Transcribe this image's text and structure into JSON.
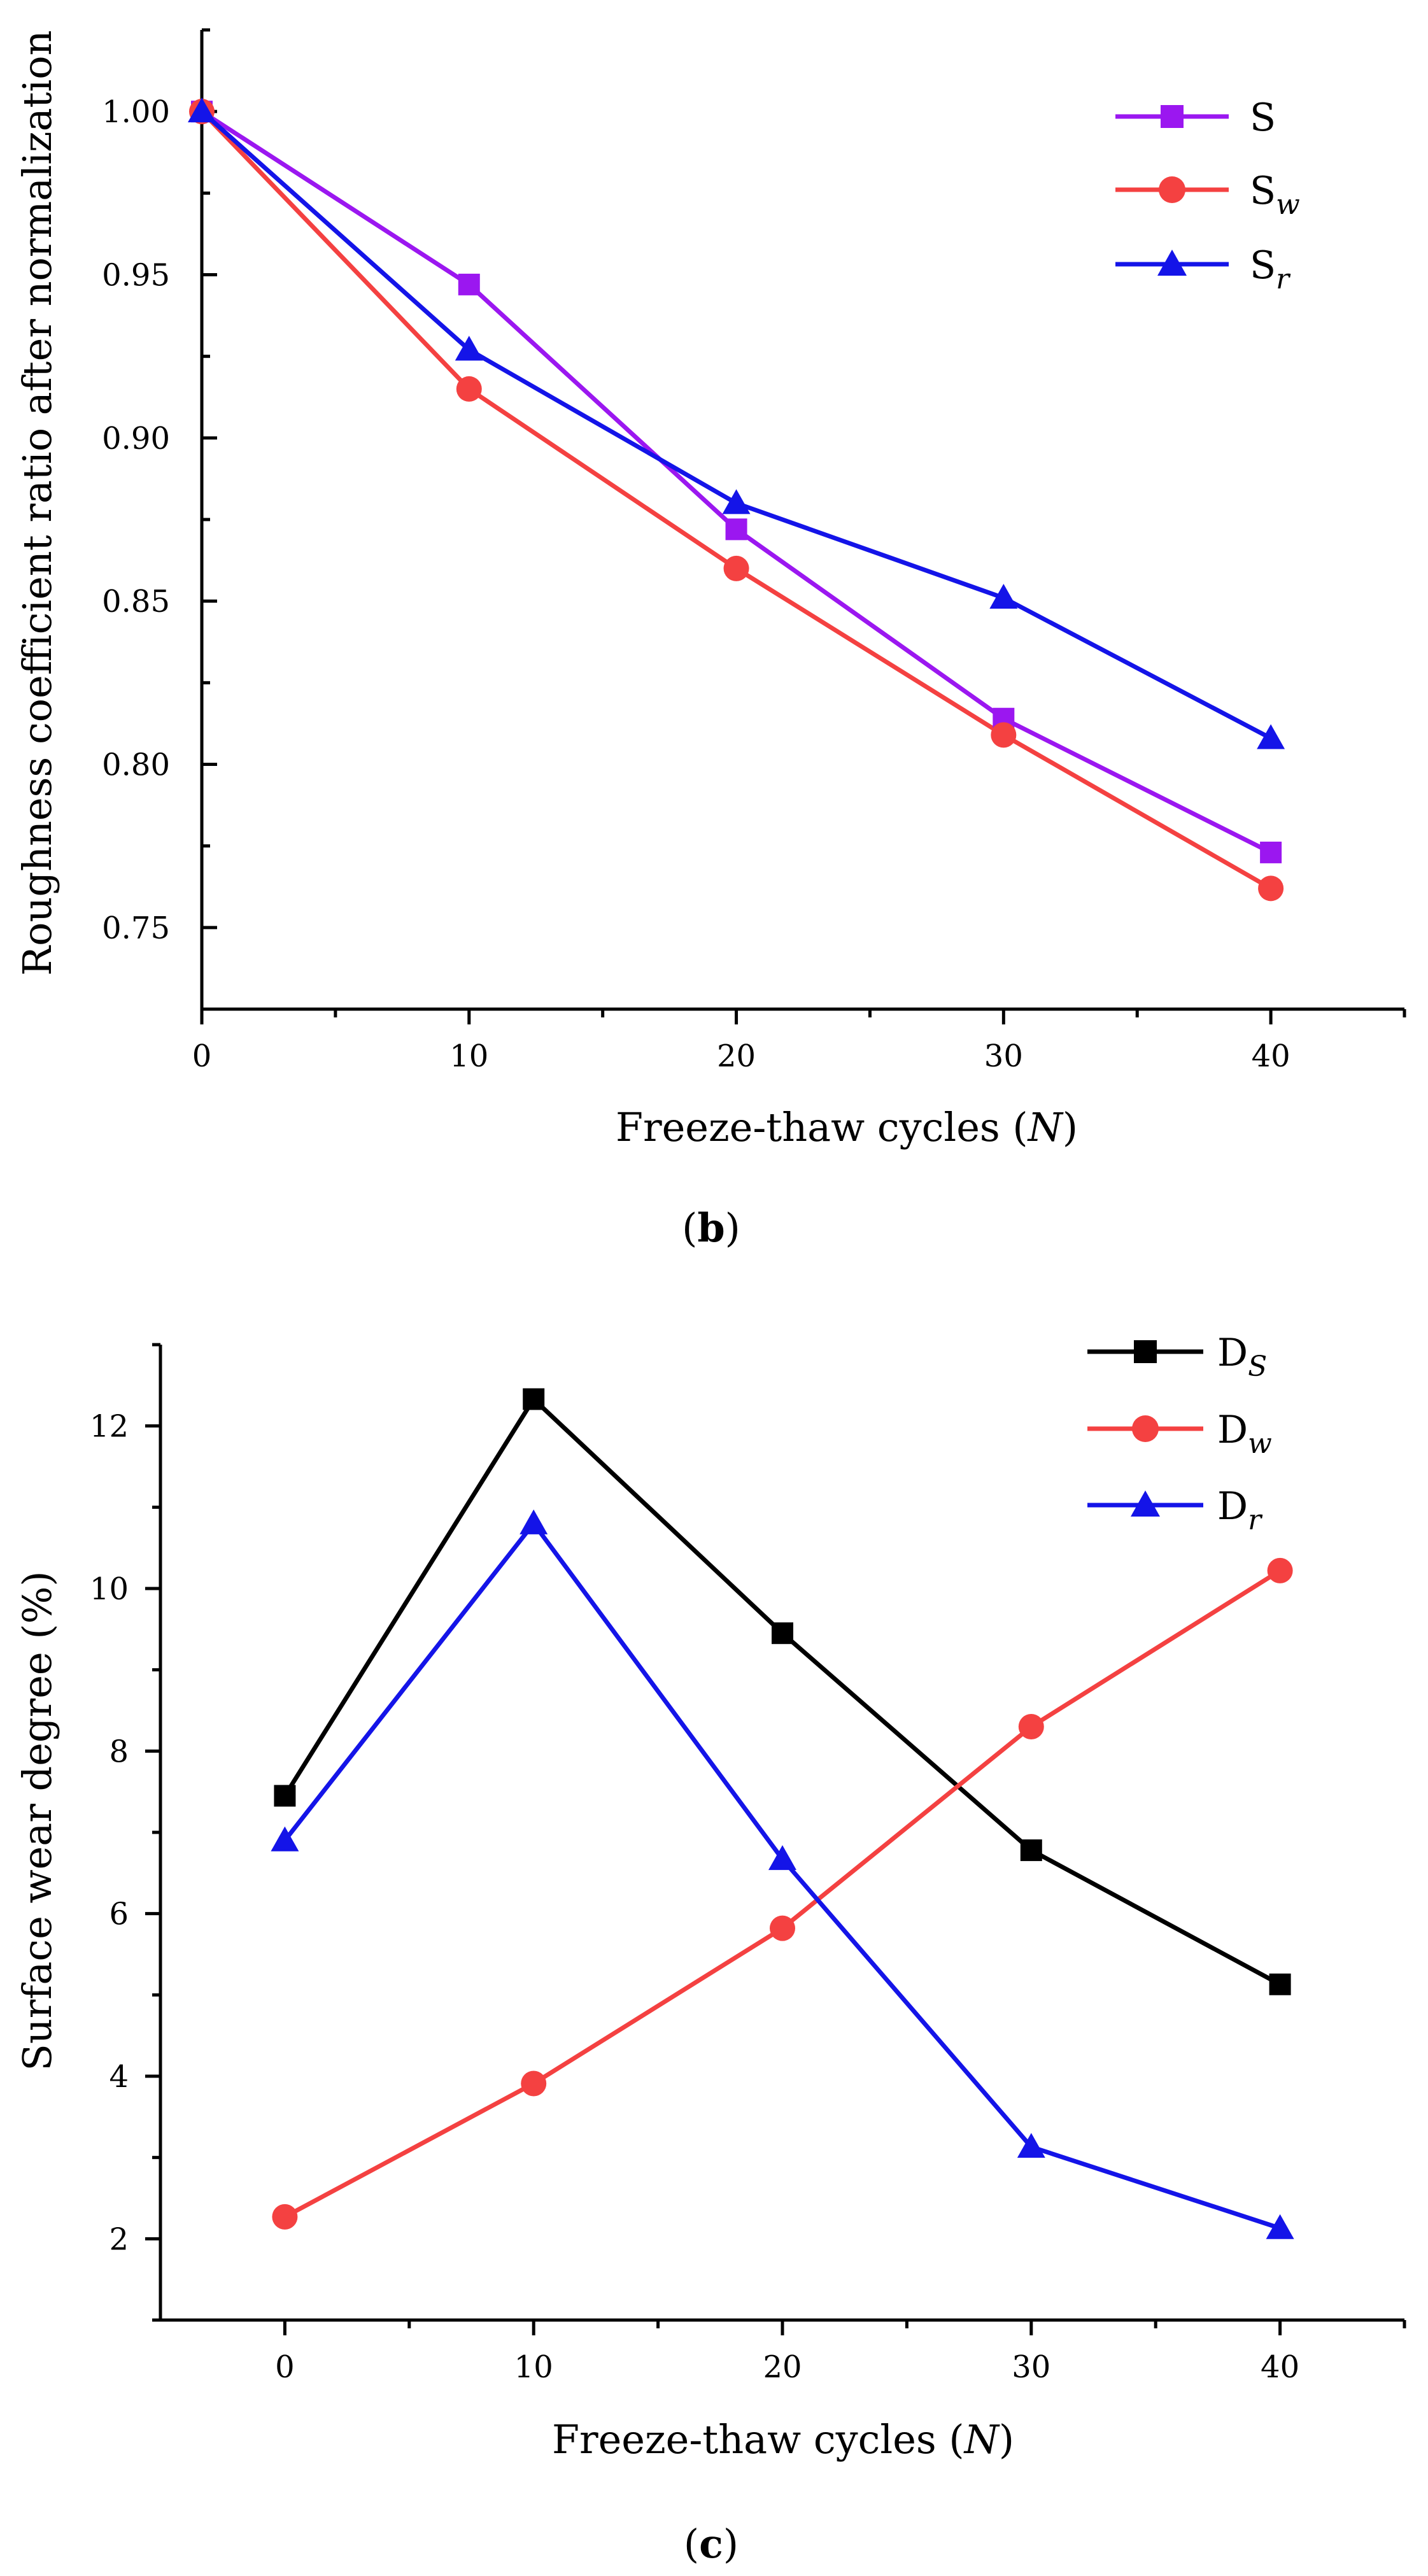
{
  "chart_data": [
    {
      "id": "b",
      "type": "line",
      "panel_label": "b",
      "xlabel": "Freeze-thaw cycles (N)",
      "xlabel_main": "Freeze-thaw cycles (",
      "xlabel_var": "N",
      "xlabel_close": ")",
      "ylabel": "Roughness coefficient ratio after normalization",
      "xlim": [
        0,
        45
      ],
      "ylim": [
        0.725,
        1.025
      ],
      "x_ticks": [
        0,
        10,
        20,
        30,
        40
      ],
      "y_ticks": [
        0.75,
        0.8,
        0.85,
        0.9,
        0.95,
        1.0
      ],
      "x_tick_labels": [
        "0",
        "10",
        "20",
        "30",
        "40"
      ],
      "y_tick_labels": [
        "0.75",
        "0.80",
        "0.85",
        "0.90",
        "0.95",
        "1.00"
      ],
      "x": [
        0,
        10,
        20,
        30,
        40
      ],
      "legend_position": "top-right",
      "series": [
        {
          "name": "S",
          "base": "S",
          "sub": "",
          "color": "#9b17f0",
          "marker": "square",
          "values": [
            1.0,
            0.947,
            0.872,
            0.814,
            0.773
          ]
        },
        {
          "name": "Sw",
          "base": "S",
          "sub": "w",
          "color": "#f44141",
          "marker": "circle",
          "values": [
            1.0,
            0.915,
            0.86,
            0.809,
            0.762
          ]
        },
        {
          "name": "Sr",
          "base": "S",
          "sub": "r",
          "color": "#1414e8",
          "marker": "triangle",
          "values": [
            1.0,
            0.927,
            0.88,
            0.851,
            0.808
          ]
        }
      ]
    },
    {
      "id": "c",
      "type": "line",
      "panel_label": "c",
      "xlabel": "Freeze-thaw cycles (N)",
      "xlabel_main": "Freeze-thaw cycles (",
      "xlabel_var": "N",
      "xlabel_close": ")",
      "ylabel": "Surface wear degree (%)",
      "xlim": [
        -5,
        45
      ],
      "ylim": [
        1,
        13
      ],
      "x_ticks": [
        0,
        10,
        20,
        30,
        40
      ],
      "y_ticks": [
        2,
        4,
        6,
        8,
        10,
        12
      ],
      "x_tick_labels": [
        "0",
        "10",
        "20",
        "30",
        "40"
      ],
      "y_tick_labels": [
        "2",
        "4",
        "6",
        "8",
        "10",
        "12"
      ],
      "x": [
        0,
        10,
        20,
        30,
        40
      ],
      "legend_position": "top-right",
      "series": [
        {
          "name": "DS",
          "base": "D",
          "sub": "S",
          "color": "#000000",
          "marker": "square",
          "values": [
            7.45,
            12.33,
            9.45,
            6.78,
            5.13
          ]
        },
        {
          "name": "Dw",
          "base": "D",
          "sub": "w",
          "color": "#f44141",
          "marker": "circle",
          "values": [
            2.27,
            3.91,
            5.82,
            8.3,
            10.22
          ]
        },
        {
          "name": "Dr",
          "base": "D",
          "sub": "r",
          "color": "#1414e8",
          "marker": "triangle",
          "values": [
            6.9,
            10.8,
            6.67,
            3.13,
            2.13
          ]
        }
      ]
    }
  ]
}
